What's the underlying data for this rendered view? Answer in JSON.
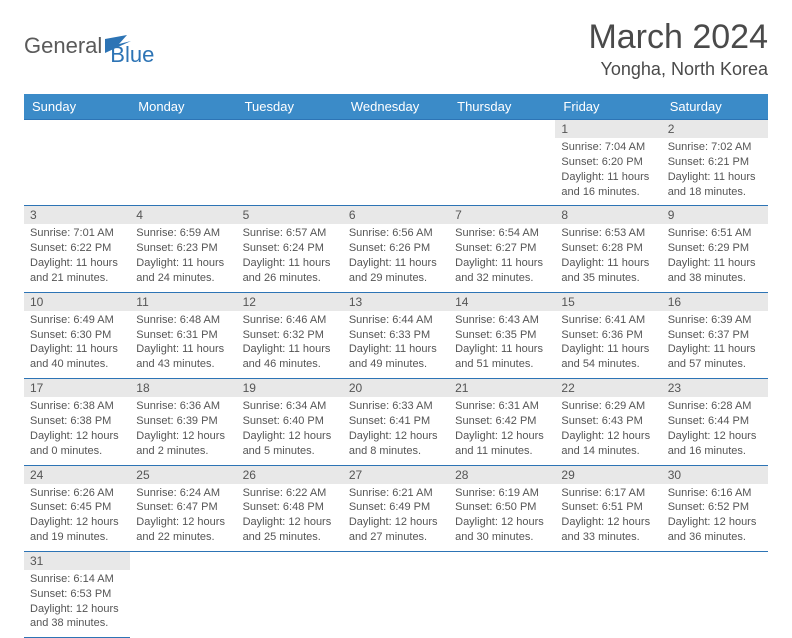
{
  "logo": {
    "general": "General",
    "blue": "Blue"
  },
  "title": "March 2024",
  "location": "Yongha, North Korea",
  "colors": {
    "header_bg": "#3b8bc8",
    "header_border": "#2d74b5",
    "daynum_bg": "#e8e8e8",
    "text": "#4a4a4a",
    "logo_blue": "#2d74b5"
  },
  "weekdays": [
    "Sunday",
    "Monday",
    "Tuesday",
    "Wednesday",
    "Thursday",
    "Friday",
    "Saturday"
  ],
  "weeks": [
    [
      null,
      null,
      null,
      null,
      null,
      {
        "n": "1",
        "sunrise": "7:04 AM",
        "sunset": "6:20 PM",
        "dl": "11 hours and 16 minutes."
      },
      {
        "n": "2",
        "sunrise": "7:02 AM",
        "sunset": "6:21 PM",
        "dl": "11 hours and 18 minutes."
      }
    ],
    [
      {
        "n": "3",
        "sunrise": "7:01 AM",
        "sunset": "6:22 PM",
        "dl": "11 hours and 21 minutes."
      },
      {
        "n": "4",
        "sunrise": "6:59 AM",
        "sunset": "6:23 PM",
        "dl": "11 hours and 24 minutes."
      },
      {
        "n": "5",
        "sunrise": "6:57 AM",
        "sunset": "6:24 PM",
        "dl": "11 hours and 26 minutes."
      },
      {
        "n": "6",
        "sunrise": "6:56 AM",
        "sunset": "6:26 PM",
        "dl": "11 hours and 29 minutes."
      },
      {
        "n": "7",
        "sunrise": "6:54 AM",
        "sunset": "6:27 PM",
        "dl": "11 hours and 32 minutes."
      },
      {
        "n": "8",
        "sunrise": "6:53 AM",
        "sunset": "6:28 PM",
        "dl": "11 hours and 35 minutes."
      },
      {
        "n": "9",
        "sunrise": "6:51 AM",
        "sunset": "6:29 PM",
        "dl": "11 hours and 38 minutes."
      }
    ],
    [
      {
        "n": "10",
        "sunrise": "6:49 AM",
        "sunset": "6:30 PM",
        "dl": "11 hours and 40 minutes."
      },
      {
        "n": "11",
        "sunrise": "6:48 AM",
        "sunset": "6:31 PM",
        "dl": "11 hours and 43 minutes."
      },
      {
        "n": "12",
        "sunrise": "6:46 AM",
        "sunset": "6:32 PM",
        "dl": "11 hours and 46 minutes."
      },
      {
        "n": "13",
        "sunrise": "6:44 AM",
        "sunset": "6:33 PM",
        "dl": "11 hours and 49 minutes."
      },
      {
        "n": "14",
        "sunrise": "6:43 AM",
        "sunset": "6:35 PM",
        "dl": "11 hours and 51 minutes."
      },
      {
        "n": "15",
        "sunrise": "6:41 AM",
        "sunset": "6:36 PM",
        "dl": "11 hours and 54 minutes."
      },
      {
        "n": "16",
        "sunrise": "6:39 AM",
        "sunset": "6:37 PM",
        "dl": "11 hours and 57 minutes."
      }
    ],
    [
      {
        "n": "17",
        "sunrise": "6:38 AM",
        "sunset": "6:38 PM",
        "dl": "12 hours and 0 minutes."
      },
      {
        "n": "18",
        "sunrise": "6:36 AM",
        "sunset": "6:39 PM",
        "dl": "12 hours and 2 minutes."
      },
      {
        "n": "19",
        "sunrise": "6:34 AM",
        "sunset": "6:40 PM",
        "dl": "12 hours and 5 minutes."
      },
      {
        "n": "20",
        "sunrise": "6:33 AM",
        "sunset": "6:41 PM",
        "dl": "12 hours and 8 minutes."
      },
      {
        "n": "21",
        "sunrise": "6:31 AM",
        "sunset": "6:42 PM",
        "dl": "12 hours and 11 minutes."
      },
      {
        "n": "22",
        "sunrise": "6:29 AM",
        "sunset": "6:43 PM",
        "dl": "12 hours and 14 minutes."
      },
      {
        "n": "23",
        "sunrise": "6:28 AM",
        "sunset": "6:44 PM",
        "dl": "12 hours and 16 minutes."
      }
    ],
    [
      {
        "n": "24",
        "sunrise": "6:26 AM",
        "sunset": "6:45 PM",
        "dl": "12 hours and 19 minutes."
      },
      {
        "n": "25",
        "sunrise": "6:24 AM",
        "sunset": "6:47 PM",
        "dl": "12 hours and 22 minutes."
      },
      {
        "n": "26",
        "sunrise": "6:22 AM",
        "sunset": "6:48 PM",
        "dl": "12 hours and 25 minutes."
      },
      {
        "n": "27",
        "sunrise": "6:21 AM",
        "sunset": "6:49 PM",
        "dl": "12 hours and 27 minutes."
      },
      {
        "n": "28",
        "sunrise": "6:19 AM",
        "sunset": "6:50 PM",
        "dl": "12 hours and 30 minutes."
      },
      {
        "n": "29",
        "sunrise": "6:17 AM",
        "sunset": "6:51 PM",
        "dl": "12 hours and 33 minutes."
      },
      {
        "n": "30",
        "sunrise": "6:16 AM",
        "sunset": "6:52 PM",
        "dl": "12 hours and 36 minutes."
      }
    ],
    [
      {
        "n": "31",
        "sunrise": "6:14 AM",
        "sunset": "6:53 PM",
        "dl": "12 hours and 38 minutes."
      },
      null,
      null,
      null,
      null,
      null,
      null
    ]
  ],
  "labels": {
    "sunrise": "Sunrise:",
    "sunset": "Sunset:",
    "daylight": "Daylight:"
  }
}
